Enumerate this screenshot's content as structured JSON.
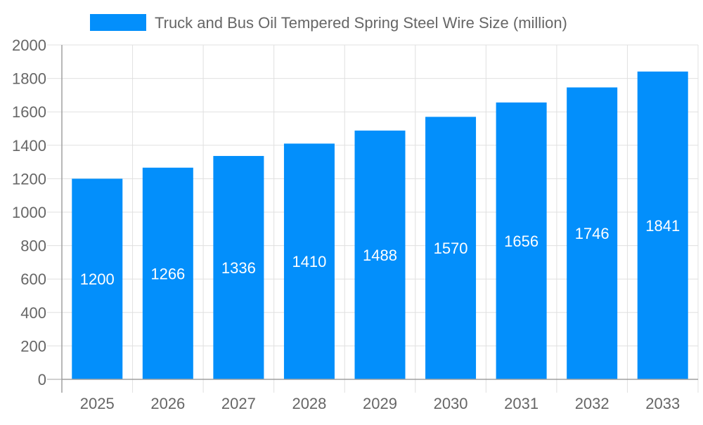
{
  "chart_data": {
    "type": "bar",
    "title": "",
    "xlabel": "",
    "ylabel": "",
    "categories": [
      "2025",
      "2026",
      "2027",
      "2028",
      "2029",
      "2030",
      "2031",
      "2032",
      "2033"
    ],
    "series": [
      {
        "name": "Truck and Bus Oil Tempered Spring Steel Wire Size (million)",
        "values": [
          1200,
          1266,
          1336,
          1410,
          1488,
          1570,
          1656,
          1746,
          1841
        ]
      }
    ],
    "ylim": [
      0,
      2000
    ],
    "yticks": [
      0,
      200,
      400,
      600,
      800,
      1000,
      1200,
      1400,
      1600,
      1800,
      2000
    ],
    "grid": true,
    "legend_position": "top",
    "data_labels": true,
    "colors": {
      "bar": "#038ffb",
      "grid": "#e0e0e0",
      "axis": "#a0a0a0",
      "text": "#666666",
      "label": "#ffffff"
    }
  }
}
